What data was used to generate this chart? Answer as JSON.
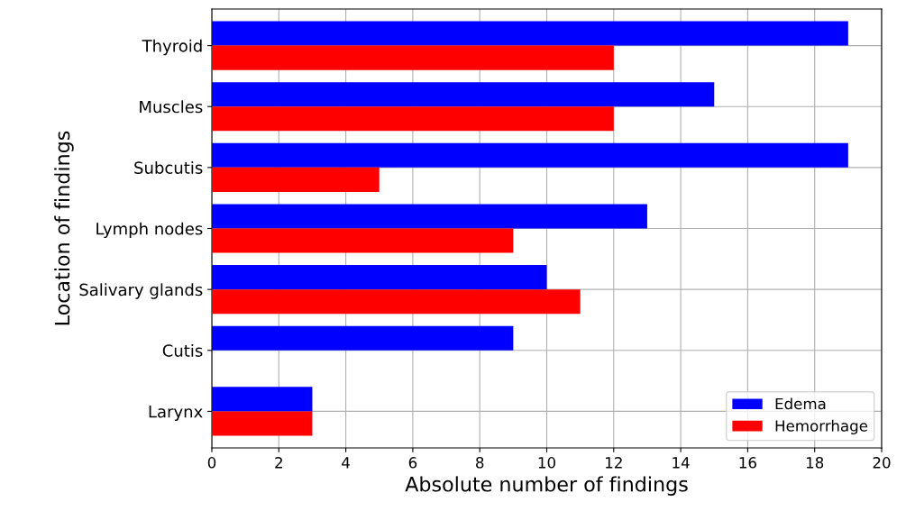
{
  "chart_data": {
    "type": "bar",
    "orientation": "horizontal",
    "xlabel": "Absolute number of findings",
    "ylabel": "Location of findings",
    "categories": [
      "Thyroid",
      "Muscles",
      "Subcutis",
      "Lymph nodes",
      "Salivary glands",
      "Cutis",
      "Larynx"
    ],
    "series": [
      {
        "name": "Edema",
        "color": "#0000ff",
        "values": [
          19,
          15,
          19,
          13,
          10,
          9,
          3
        ]
      },
      {
        "name": "Hemorrhage",
        "color": "#ff0000",
        "values": [
          12,
          12,
          5,
          9,
          11,
          0,
          3
        ]
      }
    ],
    "xlim": [
      0,
      20
    ],
    "xticks": [
      0,
      2,
      4,
      6,
      8,
      10,
      12,
      14,
      16,
      18,
      20
    ],
    "grid": true,
    "legend": "lower right"
  }
}
